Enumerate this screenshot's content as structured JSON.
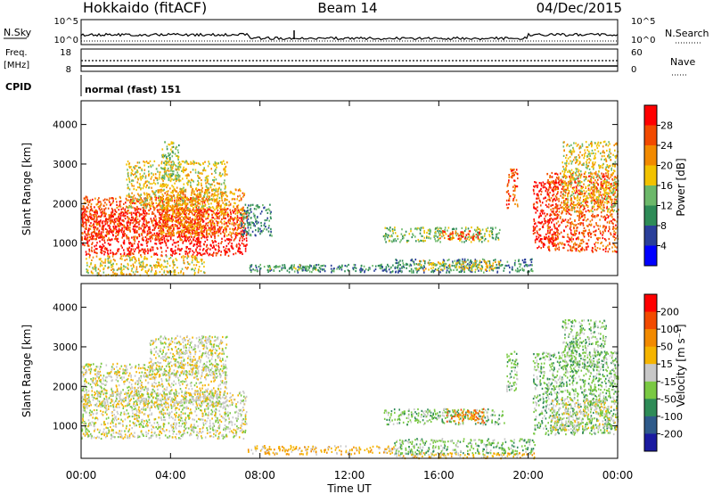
{
  "header": {
    "station": "Hokkaido (fitACF)",
    "beam": "Beam 14",
    "date": "04/Dec/2015"
  },
  "aux_panels": {
    "nsky_label": "N.Sky",
    "nsky_ticks": [
      "10^5",
      "10^0"
    ],
    "nsearch_label": "N.Search",
    "freq_label_1": "Freq.",
    "freq_label_2": "[MHz]",
    "freq_ticks": [
      "18",
      "8"
    ],
    "nave_label": "Nave",
    "nave_ticks": [
      "60",
      "0"
    ],
    "cpid_label": "CPID",
    "cpid_value": "normal (fast) 151"
  },
  "colors": {
    "power_scale": [
      "#0000ff",
      "#2a3f9a",
      "#2e8b57",
      "#6cb86a",
      "#f2c200",
      "#f28a00",
      "#f24a00",
      "#ff0000"
    ],
    "velocity_scale": [
      "#1a1aa0",
      "#2e5a8a",
      "#2e8b57",
      "#7ac943",
      "#c8c8c8",
      "#f5b400",
      "#f28a00",
      "#f24a00",
      "#ff0000"
    ]
  },
  "chart_data": [
    {
      "type": "heatmap",
      "name": "power",
      "ylabel": "Slant Range [km]",
      "y_ticks": [
        "1000",
        "2000",
        "3000",
        "4000"
      ],
      "ylim": [
        180,
        4600
      ],
      "xlim": [
        0,
        24
      ],
      "colorbar_label": "Power [dB]",
      "colorbar_ticks": [
        "4",
        "8",
        "12",
        "16",
        "20",
        "24",
        "28"
      ],
      "regions": [
        {
          "t0": 0.0,
          "t1": 7.4,
          "r0": 700,
          "r1": 1900,
          "level": 7
        },
        {
          "t0": 0.0,
          "t1": 5.5,
          "r0": 1100,
          "r1": 2200,
          "level": 6
        },
        {
          "t0": 3.5,
          "t1": 7.3,
          "r0": 1200,
          "r1": 2400,
          "level": 5
        },
        {
          "t0": 2.0,
          "t1": 6.5,
          "r0": 1900,
          "r1": 3100,
          "level": 4
        },
        {
          "t0": 3.6,
          "t1": 4.4,
          "r0": 2600,
          "r1": 3600,
          "level": 3
        },
        {
          "t0": 0.2,
          "t1": 5.5,
          "r0": 200,
          "r1": 700,
          "level": 4
        },
        {
          "t0": 7.1,
          "t1": 8.5,
          "r0": 1200,
          "r1": 2000,
          "level": 2
        },
        {
          "t0": 7.5,
          "t1": 14.5,
          "r0": 280,
          "r1": 480,
          "level": 2
        },
        {
          "t0": 8.3,
          "t1": 10.8,
          "r0": 330,
          "r1": 470,
          "level": 3
        },
        {
          "t0": 14.0,
          "t1": 20.2,
          "r0": 280,
          "r1": 620,
          "level": 2
        },
        {
          "t0": 15.0,
          "t1": 18.8,
          "r0": 330,
          "r1": 580,
          "level": 4
        },
        {
          "t0": 13.5,
          "t1": 18.7,
          "r0": 1050,
          "r1": 1420,
          "level": 3
        },
        {
          "t0": 16.0,
          "t1": 17.8,
          "r0": 1100,
          "r1": 1330,
          "level": 6
        },
        {
          "t0": 19.0,
          "t1": 19.5,
          "r0": 1900,
          "r1": 2900,
          "level": 6
        },
        {
          "t0": 20.2,
          "t1": 21.3,
          "r0": 900,
          "r1": 2600,
          "level": 7
        },
        {
          "t0": 20.8,
          "t1": 24.0,
          "r0": 800,
          "r1": 2800,
          "level": 6
        },
        {
          "t0": 21.5,
          "t1": 24.0,
          "r0": 1800,
          "r1": 3600,
          "level": 4
        }
      ]
    },
    {
      "type": "heatmap",
      "name": "velocity",
      "ylabel": "Slant Range [km]",
      "y_ticks": [
        "1000",
        "2000",
        "3000",
        "4000"
      ],
      "ylim": [
        180,
        4600
      ],
      "xlim": [
        0,
        24
      ],
      "colorbar_label": "Velocity [m s⁻¹]",
      "colorbar_ticks": [
        "200",
        "100",
        "50",
        "15",
        "-15",
        "-50",
        "-100",
        "-200"
      ],
      "regions": [
        {
          "t0": 0.0,
          "t1": 7.4,
          "r0": 700,
          "r1": 1900,
          "level": 4
        },
        {
          "t0": 0.0,
          "t1": 6.5,
          "r0": 1500,
          "r1": 2600,
          "level": 4
        },
        {
          "t0": 3.0,
          "t1": 6.5,
          "r0": 2300,
          "r1": 3300,
          "level": 4
        },
        {
          "t0": 7.4,
          "t1": 14.0,
          "r0": 300,
          "r1": 520,
          "level": 5
        },
        {
          "t0": 14.0,
          "t1": 20.3,
          "r0": 300,
          "r1": 700,
          "level": 3
        },
        {
          "t0": 14.0,
          "t1": 20.3,
          "r0": 200,
          "r1": 340,
          "level": 5
        },
        {
          "t0": 13.5,
          "t1": 18.9,
          "r0": 1050,
          "r1": 1450,
          "level": 3
        },
        {
          "t0": 16.3,
          "t1": 18.0,
          "r0": 1100,
          "r1": 1450,
          "level": 6
        },
        {
          "t0": 19.0,
          "t1": 19.5,
          "r0": 1900,
          "r1": 2900,
          "level": 3
        },
        {
          "t0": 20.2,
          "t1": 24.0,
          "r0": 800,
          "r1": 2900,
          "level": 3
        },
        {
          "t0": 21.0,
          "t1": 24.0,
          "r0": 900,
          "r1": 1700,
          "level": 4
        },
        {
          "t0": 21.5,
          "t1": 23.5,
          "r0": 2500,
          "r1": 3700,
          "level": 3
        }
      ]
    }
  ],
  "x_axis": {
    "ticks": [
      "00:00",
      "04:00",
      "08:00",
      "12:00",
      "16:00",
      "20:00",
      "00:00"
    ],
    "label": "Time UT"
  }
}
